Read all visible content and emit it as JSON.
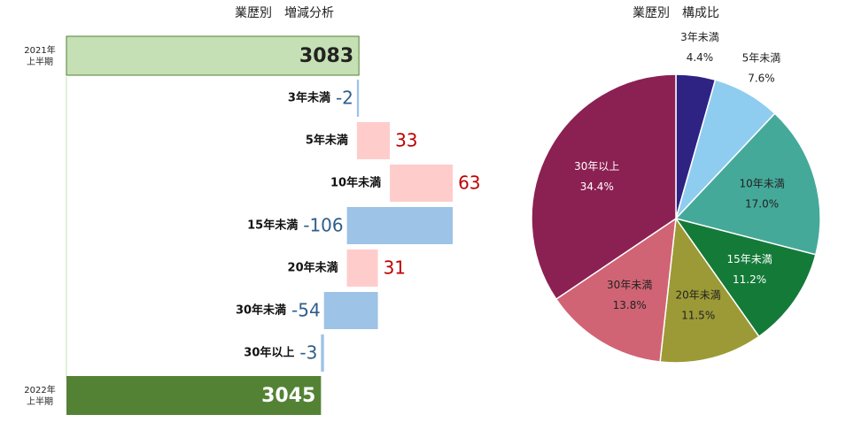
{
  "chart_data": [
    {
      "type": "waterfall",
      "title": "業歴別　増減分析",
      "categories": [
        "2021年\n上半期",
        "3年未満",
        "5年未満",
        "10年未満",
        "15年未満",
        "20年未満",
        "30年未満",
        "30年以上",
        "2022年\n上半期"
      ],
      "values": [
        3083,
        -2,
        33,
        63,
        -106,
        31,
        -54,
        -3,
        3045
      ],
      "measure": [
        "absolute",
        "relative",
        "relative",
        "relative",
        "relative",
        "relative",
        "relative",
        "relative",
        "total"
      ],
      "xlim": [
        2790,
        3200
      ],
      "colors": {
        "absolute": "#c5e0b4",
        "total": "#548235",
        "increase": "#ffcccc",
        "decrease": "#9dc3e6"
      },
      "label_colors": {
        "absolute": "#222222",
        "total": "#ffffff",
        "increase": "#c00000",
        "decrease": "#2e5f8a"
      }
    },
    {
      "type": "pie",
      "title": "業歴別　構成比",
      "categories": [
        "3年未満",
        "5年未満",
        "10年未満",
        "15年未満",
        "20年未満",
        "30年未満",
        "30年以上"
      ],
      "values": [
        4.4,
        7.6,
        17.0,
        11.2,
        11.5,
        13.8,
        34.4
      ],
      "value_labels": [
        "4.4%",
        "7.6%",
        "17.0%",
        "11.2%",
        "11.5%",
        "13.8%",
        "34.4%"
      ],
      "colors": [
        "#2e2383",
        "#8ecdf0",
        "#45a99a",
        "#147a38",
        "#9c9a36",
        "#d06474",
        "#8b2052"
      ],
      "label_colors": [
        "#222222",
        "#222222",
        "#222222",
        "#ffffff",
        "#222222",
        "#222222",
        "#ffffff"
      ]
    }
  ]
}
